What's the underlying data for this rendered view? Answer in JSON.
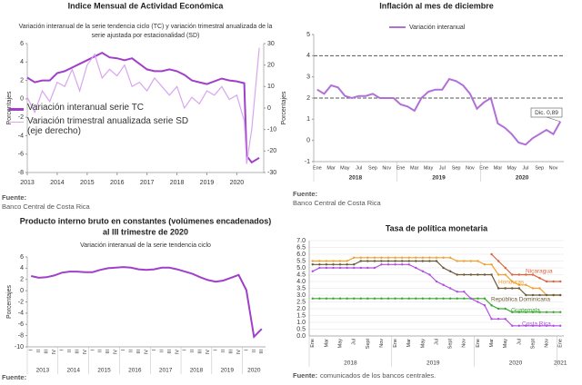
{
  "chart_data": [
    {
      "type": "line",
      "title": [
        "Indice Mensual de  Actividad Económica"
      ],
      "subtitle": [
        "Variación interanual de la serie tendencia ciclo (TC) y variación trimestral anualizada de la",
        "serie ajustada por estacionalidad (SD)"
      ],
      "y_label": "Porcentajes",
      "y2_label": "Porcentajes",
      "x": [
        2013,
        2013.25,
        2013.5,
        2013.75,
        2014,
        2014.25,
        2014.5,
        2014.75,
        2015,
        2015.25,
        2015.5,
        2015.75,
        2016,
        2016.25,
        2016.5,
        2016.75,
        2017,
        2017.25,
        2017.5,
        2017.75,
        2018,
        2018.25,
        2018.5,
        2018.75,
        2019,
        2019.25,
        2019.5,
        2019.75,
        2020,
        2020.25,
        2020.33,
        2020.5,
        2020.75
      ],
      "xlim": [
        2013,
        2020.9
      ],
      "xticks": [
        2013,
        2014,
        2015,
        2016,
        2017,
        2018,
        2019,
        2020
      ],
      "ylim": [
        -8,
        6
      ],
      "yticks": [
        -8,
        -6,
        -4,
        -2,
        0,
        2,
        4,
        6
      ],
      "y2lim": [
        -30,
        30
      ],
      "y2ticks": [
        -30,
        -20,
        -10,
        0,
        10,
        20,
        30
      ],
      "series": [
        {
          "name": "Variación interanual serie TC",
          "color": "#a040c8",
          "values": [
            2.3,
            1.8,
            2.0,
            2.0,
            2.8,
            3.0,
            3.4,
            3.8,
            4.2,
            4.6,
            5.0,
            4.5,
            4.4,
            4.2,
            4.4,
            3.8,
            3.2,
            3.0,
            3.0,
            3.2,
            3.0,
            2.6,
            2.0,
            1.8,
            1.6,
            1.9,
            2.2,
            2.0,
            1.9,
            1.7,
            -6.2,
            -6.9,
            -6.4
          ]
        },
        {
          "name": "Variación trimestral anualizada serie SD (eje derecho)",
          "color": "#d9a6ee",
          "axis": "y2",
          "values": [
            5,
            -2,
            8,
            3,
            12,
            10,
            18,
            8,
            20,
            25,
            14,
            18,
            15,
            20,
            10,
            12,
            8,
            14,
            10,
            6,
            10,
            0,
            5,
            2,
            8,
            6,
            10,
            4,
            6,
            -6,
            -26,
            -10,
            28
          ]
        }
      ],
      "source_label": "Fuente:",
      "source": "Banco Central de Costa Rica"
    },
    {
      "type": "line",
      "title": [
        "Inflación al mes de diciembre"
      ],
      "categories": [
        "Ene",
        null,
        "Mar",
        null,
        "May",
        null,
        "Jul",
        null,
        "Sep",
        null,
        "Nov",
        null,
        "Ene",
        null,
        "Mar",
        null,
        "May",
        null,
        "Jul",
        null,
        "Sep",
        null,
        "Nov",
        null,
        "Ene",
        null,
        "Mar",
        null,
        "May",
        null,
        "Jul",
        null,
        "Sep",
        null,
        "Nov",
        null
      ],
      "years": [
        "2018",
        "2019",
        "2020"
      ],
      "ylim": [
        -1,
        5
      ],
      "yticks": [
        -1,
        0,
        1,
        2,
        3,
        4,
        5
      ],
      "reference_lines": [
        2,
        4
      ],
      "series": [
        {
          "name": "Variación interanual",
          "color": "#b070d8",
          "values": [
            2.4,
            2.2,
            2.6,
            2.5,
            2.1,
            2.0,
            2.1,
            2.1,
            2.2,
            2.0,
            2.0,
            2.0,
            1.7,
            1.6,
            1.4,
            2.0,
            2.3,
            2.4,
            2.4,
            2.9,
            2.8,
            2.6,
            2.2,
            1.5,
            1.8,
            2.0,
            0.8,
            0.6,
            0.3,
            -0.1,
            -0.2,
            0.1,
            0.3,
            0.5,
            0.3,
            0.89
          ]
        }
      ],
      "annotation": "Dic. 0,89",
      "source_label": "Fuente:",
      "source": "Banco Central de Costa Rica"
    },
    {
      "type": "line",
      "title": [
        "Producto interno bruto en constantes (volúmenes encadenados)",
        "al III trimestre de 2020"
      ],
      "subtitle": [
        "Variación interanual de la serie tendencia ciclo"
      ],
      "y_label": "Porcentajes",
      "categories": [
        "I",
        "II",
        "III",
        "IV",
        "I",
        "II",
        "III",
        "IV",
        "I",
        "II",
        "III",
        "IV",
        "I",
        "II",
        "III",
        "IV",
        "I",
        "II",
        "III",
        "IV",
        "I",
        "II",
        "III",
        "IV",
        "I",
        "II",
        "III",
        "IV",
        "I",
        "II",
        "III"
      ],
      "years": [
        "2013",
        "2014",
        "2015",
        "2016",
        "2017",
        "2018",
        "2019",
        "2020"
      ],
      "ylim": [
        -10,
        6
      ],
      "yticks": [
        -10,
        -8,
        -6,
        -4,
        -2,
        0,
        2,
        4,
        6
      ],
      "series": [
        {
          "name": "Variación interanual",
          "color": "#a040c8",
          "values": [
            2.6,
            2.3,
            2.4,
            2.7,
            3.2,
            3.4,
            3.4,
            3.3,
            3.3,
            3.7,
            4.0,
            4.1,
            4.2,
            4.1,
            3.8,
            3.7,
            3.8,
            4.1,
            4.1,
            3.8,
            3.4,
            3.0,
            2.4,
            1.9,
            1.6,
            1.8,
            2.3,
            2.8,
            0.1,
            -8.2,
            -6.8
          ]
        }
      ],
      "source_label": "Fuente:"
    },
    {
      "type": "line",
      "title": [
        "Tasa de política monetaria"
      ],
      "categories": [
        "Ene",
        null,
        "Mar",
        null,
        "May",
        null,
        "Jul",
        null,
        "Sept",
        null,
        "Nov",
        null,
        "Ene",
        null,
        "Mar",
        null,
        "May",
        null,
        "Jul",
        null,
        "Sept",
        null,
        "Nov",
        null,
        "Ene",
        null,
        "Mar",
        null,
        "May",
        null,
        "Jul",
        null,
        "Sept",
        null,
        "Nov",
        null,
        "Ene"
      ],
      "years": [
        "2018",
        "2019",
        "2020",
        "2021"
      ],
      "ylim": [
        0,
        7
      ],
      "yticks": [
        {
          "value": 0,
          "label": "0.0"
        },
        {
          "value": 0.5,
          "label": "0.5"
        },
        {
          "value": 1,
          "label": "1.0"
        },
        {
          "value": 1.5,
          "label": "1.5"
        },
        {
          "value": 2,
          "label": "2.0"
        },
        {
          "value": 2.5,
          "label": "2.5"
        },
        {
          "value": 3,
          "label": "3.0"
        },
        {
          "value": 3.5,
          "label": "3.5"
        },
        {
          "value": 4,
          "label": "4.0"
        },
        {
          "value": 4.5,
          "label": "4.5"
        },
        {
          "value": 5,
          "label": "5.0"
        },
        {
          "value": 5.5,
          "label": "5.5"
        },
        {
          "value": 6,
          "label": "6.0"
        },
        {
          "value": 6.5,
          "label": "6.5"
        },
        {
          "value": 7,
          "label": "7.0"
        }
      ],
      "grid": true,
      "series": [
        {
          "name": "Nicaragua",
          "color": "#e0603a",
          "values": [
            null,
            null,
            null,
            null,
            null,
            null,
            null,
            null,
            null,
            null,
            null,
            null,
            null,
            null,
            null,
            null,
            null,
            null,
            null,
            null,
            null,
            null,
            null,
            null,
            null,
            null,
            6.0,
            5.5,
            5.0,
            4.5,
            4.5,
            4.5,
            4.5,
            4.25,
            4.0,
            4.0,
            4.0
          ]
        },
        {
          "name": "Honduras",
          "color": "#f0a030",
          "values": [
            5.5,
            5.5,
            5.5,
            5.5,
            5.5,
            5.5,
            5.75,
            5.75,
            5.75,
            5.75,
            5.75,
            5.75,
            5.75,
            5.75,
            5.75,
            5.75,
            5.75,
            5.75,
            5.75,
            5.75,
            5.75,
            5.5,
            5.5,
            5.5,
            5.5,
            5.25,
            5.25,
            4.5,
            4.5,
            4.0,
            3.75,
            3.75,
            3.5,
            3.5,
            3.0,
            3.0,
            3.0
          ]
        },
        {
          "name": "República Dominicana",
          "color": "#6b5a3a",
          "values": [
            5.25,
            5.25,
            5.25,
            5.25,
            5.25,
            5.25,
            5.25,
            5.5,
            5.5,
            5.5,
            5.5,
            5.5,
            5.5,
            5.5,
            5.5,
            5.5,
            5.5,
            5.5,
            5.5,
            5.0,
            4.75,
            4.5,
            4.5,
            4.5,
            4.5,
            4.5,
            4.5,
            3.5,
            3.5,
            3.5,
            3.5,
            3.0,
            3.0,
            3.0,
            3.0,
            3.0,
            3.0
          ]
        },
        {
          "name": "Guatemala",
          "color": "#3aa832",
          "values": [
            2.75,
            2.75,
            2.75,
            2.75,
            2.75,
            2.75,
            2.75,
            2.75,
            2.75,
            2.75,
            2.75,
            2.75,
            2.75,
            2.75,
            2.75,
            2.75,
            2.75,
            2.75,
            2.75,
            2.75,
            2.75,
            2.75,
            2.75,
            2.75,
            2.75,
            2.75,
            2.25,
            2.0,
            2.0,
            1.75,
            1.75,
            1.75,
            1.75,
            1.75,
            1.75,
            1.75,
            1.75
          ]
        },
        {
          "name": "Costa Rica",
          "color": "#b050e0",
          "values": [
            4.75,
            5,
            5,
            5,
            5,
            5,
            5,
            5,
            5,
            5,
            5.25,
            5.25,
            5.25,
            5.25,
            5.25,
            5.0,
            4.75,
            4.5,
            4.0,
            3.75,
            3.5,
            3.25,
            3.25,
            2.75,
            2.5,
            2.25,
            1.25,
            1.25,
            1.25,
            0.75,
            0.75,
            0.75,
            0.75,
            0.75,
            0.75,
            0.75,
            0.75
          ]
        }
      ],
      "source_label": "Fuente:",
      "source": "comunicados de los bancos centrales."
    }
  ]
}
